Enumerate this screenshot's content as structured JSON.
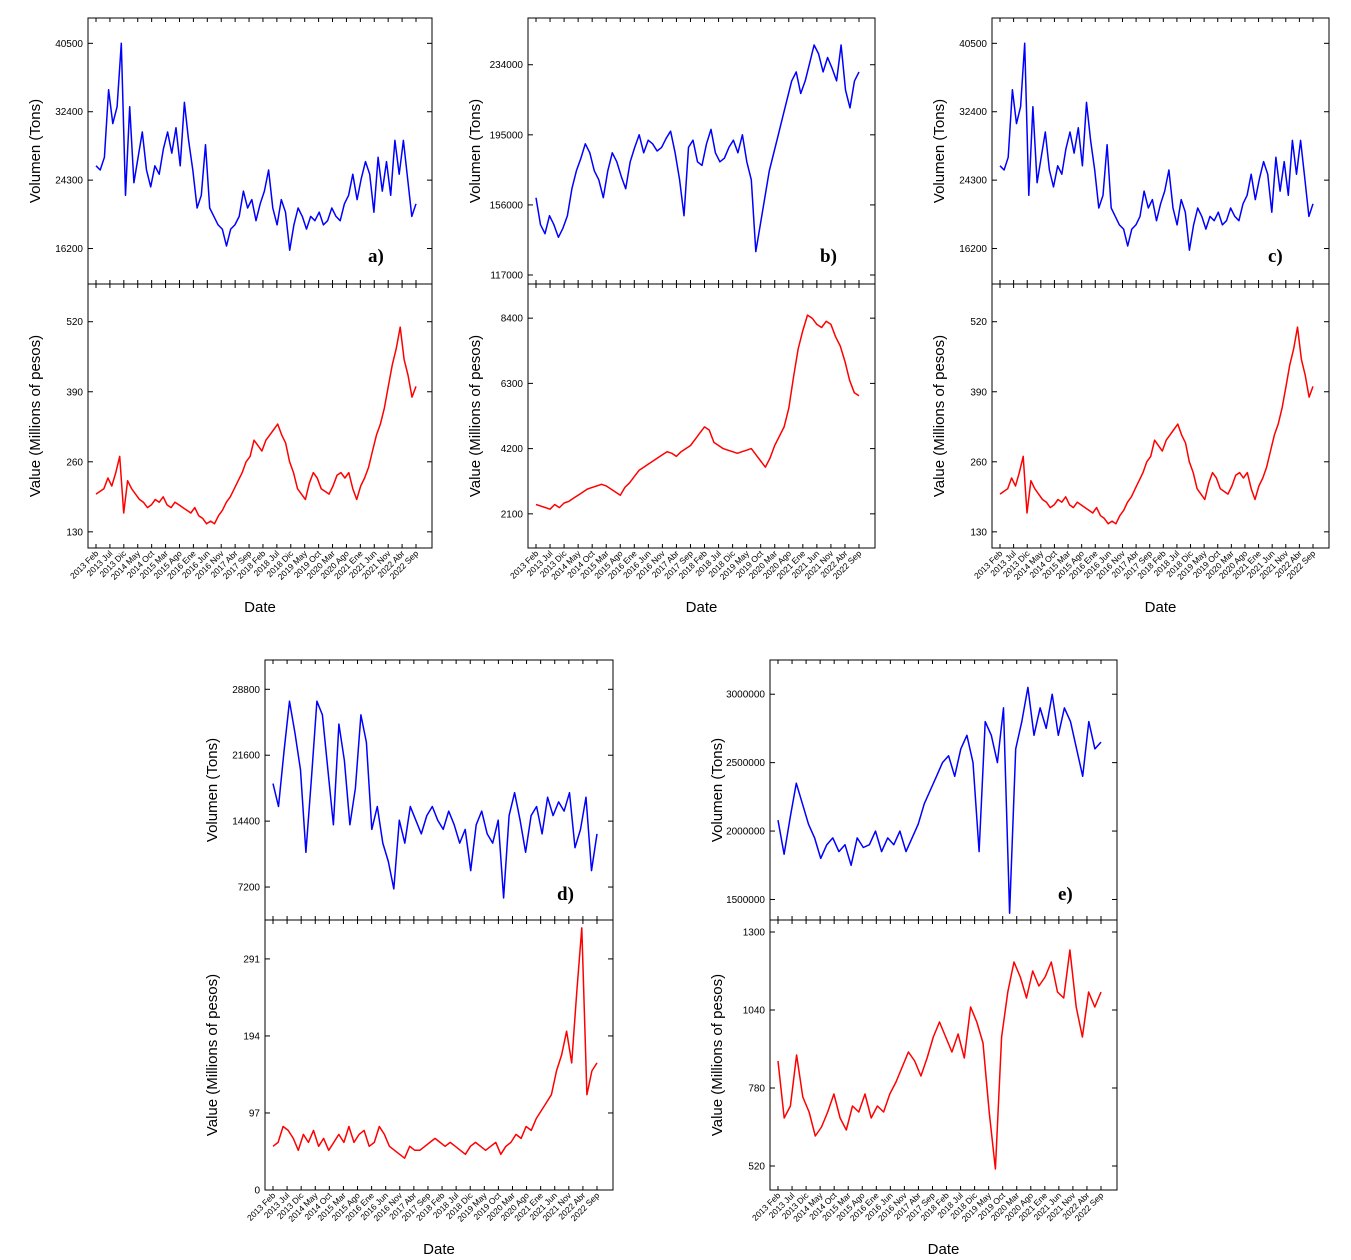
{
  "colors": {
    "volume_series": "#0000ff",
    "value_series": "#ff0000"
  },
  "shared_x_ticks": [
    "2013 Feb",
    "2013 Jul",
    "2013 Dic",
    "2014 May",
    "2014 Oct",
    "2015 Mar",
    "2015 Ago",
    "2016 Ene",
    "2016 Jun",
    "2016 Nov",
    "2017 Abr",
    "2017 Sep",
    "2018 Feb",
    "2018 Jul",
    "2018 Dic",
    "2019 May",
    "2019 Oct",
    "2020 Mar",
    "2020 Ago",
    "2021 Ene",
    "2021 Jun",
    "2021 Nov",
    "2022 Abr",
    "2022 Sep"
  ],
  "chart_data": [
    {
      "type": "line",
      "panel": "a)",
      "title": "",
      "xlabel": "Date",
      "volume": {
        "ylabel": "Volumen (Tons)",
        "yticks": [
          16200,
          24300,
          32400,
          40500
        ],
        "ylim": [
          12000,
          43500
        ],
        "series": [
          {
            "name": "Volumen",
            "values": [
              26000,
              25500,
              27000,
              35000,
              31000,
              33000,
              40500,
              22500,
              33000,
              24000,
              27000,
              30000,
              25500,
              23500,
              26000,
              25000,
              28000,
              30000,
              27500,
              30500,
              26000,
              33500,
              29000,
              25500,
              21000,
              22500,
              28500,
              21000,
              20000,
              19000,
              18500,
              16500,
              18500,
              19000,
              20000,
              23000,
              21000,
              22000,
              19500,
              21500,
              23000,
              25500,
              21000,
              19000,
              22000,
              20500,
              16000,
              19000,
              21000,
              20000,
              18500,
              20000,
              19500,
              20500,
              19000,
              19500,
              21000,
              20000,
              19500,
              21500,
              22500,
              25000,
              22000,
              24500,
              26500,
              25000,
              20500,
              27000,
              23000,
              26500,
              22500,
              29000,
              25000,
              29000,
              24500,
              20000,
              21500
            ]
          }
        ]
      },
      "value": {
        "ylabel": "Value (Millions of pesos)",
        "yticks": [
          130,
          260,
          390,
          520
        ],
        "ylim": [
          100,
          590
        ],
        "series": [
          {
            "name": "Value",
            "values": [
              200,
              205,
              210,
              230,
              215,
              240,
              270,
              165,
              225,
              210,
              200,
              190,
              185,
              175,
              180,
              190,
              185,
              195,
              180,
              175,
              185,
              180,
              175,
              170,
              165,
              175,
              160,
              155,
              145,
              150,
              145,
              160,
              170,
              185,
              195,
              210,
              225,
              240,
              260,
              270,
              300,
              290,
              280,
              300,
              310,
              320,
              330,
              310,
              295,
              260,
              240,
              210,
              200,
              190,
              220,
              240,
              230,
              210,
              205,
              200,
              215,
              235,
              240,
              230,
              240,
              210,
              190,
              215,
              230,
              250,
              280,
              310,
              330,
              360,
              400,
              440,
              470,
              510,
              450,
              420,
              380,
              400
            ]
          }
        ]
      }
    },
    {
      "type": "line",
      "panel": "b)",
      "title": "",
      "xlabel": "Date",
      "volume": {
        "ylabel": "Volumen (Tons)",
        "yticks": [
          117000,
          156000,
          195000,
          234000
        ],
        "ylim": [
          112000,
          260000
        ],
        "series": [
          {
            "name": "Volumen",
            "values": [
              160000,
              145000,
              140000,
              150000,
              145000,
              138000,
              143000,
              150000,
              165000,
              175000,
              182000,
              190000,
              185000,
              175000,
              170000,
              160000,
              175000,
              185000,
              180000,
              172000,
              165000,
              180000,
              188000,
              195000,
              185000,
              192000,
              190000,
              186000,
              188000,
              193000,
              197000,
              185000,
              170000,
              150000,
              188000,
              192000,
              180000,
              178000,
              190000,
              198000,
              185000,
              180000,
              182000,
              188000,
              192000,
              185000,
              195000,
              180000,
              170000,
              130000,
              145000,
              160000,
              175000,
              185000,
              195000,
              205000,
              215000,
              225000,
              230000,
              218000,
              225000,
              235000,
              245000,
              240000,
              230000,
              238000,
              232000,
              225000,
              245000,
              220000,
              210000,
              225000,
              230000
            ]
          }
        ]
      },
      "value": {
        "ylabel": "Value (Millions of pesos)",
        "yticks": [
          2100,
          4200,
          6300,
          8400
        ],
        "ylim": [
          1000,
          9500
        ],
        "series": [
          {
            "name": "Value",
            "values": [
              2400,
              2350,
              2300,
              2250,
              2400,
              2300,
              2450,
              2500,
              2600,
              2700,
              2800,
              2900,
              2950,
              3000,
              3050,
              3000,
              2900,
              2800,
              2700,
              2950,
              3100,
              3300,
              3500,
              3600,
              3700,
              3800,
              3900,
              4000,
              4100,
              4050,
              3950,
              4100,
              4200,
              4300,
              4500,
              4700,
              4900,
              4800,
              4400,
              4300,
              4200,
              4150,
              4100,
              4050,
              4100,
              4150,
              4200,
              4000,
              3800,
              3600,
              3900,
              4300,
              4600,
              4900,
              5500,
              6500,
              7400,
              8000,
              8500,
              8400,
              8200,
              8100,
              8300,
              8200,
              7800,
              7500,
              7000,
              6400,
              6000,
              5900
            ]
          }
        ]
      }
    },
    {
      "type": "line",
      "panel": "c)",
      "title": "",
      "xlabel": "Date",
      "volume": {
        "ylabel": "Volumen (Tons)",
        "yticks": [
          16200,
          24300,
          32400,
          40500
        ],
        "ylim": [
          12000,
          43500
        ],
        "series": [
          {
            "name": "Volumen",
            "values": [
              26000,
              25500,
              27000,
              35000,
              31000,
              33000,
              40500,
              22500,
              33000,
              24000,
              27000,
              30000,
              25500,
              23500,
              26000,
              25000,
              28000,
              30000,
              27500,
              30500,
              26000,
              33500,
              29000,
              25500,
              21000,
              22500,
              28500,
              21000,
              20000,
              19000,
              18500,
              16500,
              18500,
              19000,
              20000,
              23000,
              21000,
              22000,
              19500,
              21500,
              23000,
              25500,
              21000,
              19000,
              22000,
              20500,
              16000,
              19000,
              21000,
              20000,
              18500,
              20000,
              19500,
              20500,
              19000,
              19500,
              21000,
              20000,
              19500,
              21500,
              22500,
              25000,
              22000,
              24500,
              26500,
              25000,
              20500,
              27000,
              23000,
              26500,
              22500,
              29000,
              25000,
              29000,
              24500,
              20000,
              21500
            ]
          }
        ]
      },
      "value": {
        "ylabel": "Value (Millions of pesos)",
        "yticks": [
          130,
          260,
          390,
          520
        ],
        "ylim": [
          100,
          590
        ],
        "series": [
          {
            "name": "Value",
            "values": [
              200,
              205,
              210,
              230,
              215,
              240,
              270,
              165,
              225,
              210,
              200,
              190,
              185,
              175,
              180,
              190,
              185,
              195,
              180,
              175,
              185,
              180,
              175,
              170,
              165,
              175,
              160,
              155,
              145,
              150,
              145,
              160,
              170,
              185,
              195,
              210,
              225,
              240,
              260,
              270,
              300,
              290,
              280,
              300,
              310,
              320,
              330,
              310,
              295,
              260,
              240,
              210,
              200,
              190,
              220,
              240,
              230,
              210,
              205,
              200,
              215,
              235,
              240,
              230,
              240,
              210,
              190,
              215,
              230,
              250,
              280,
              310,
              330,
              360,
              400,
              440,
              470,
              510,
              450,
              420,
              380,
              400
            ]
          }
        ]
      }
    },
    {
      "type": "line",
      "panel": "d)",
      "title": "",
      "xlabel": "Date",
      "volume": {
        "ylabel": "Volumen (Tons)",
        "yticks": [
          7200,
          14400,
          21600,
          28800
        ],
        "ylim": [
          3600,
          32000
        ],
        "series": [
          {
            "name": "Volumen",
            "values": [
              18500,
              16000,
              22000,
              27500,
              24000,
              20000,
              11000,
              19000,
              27500,
              26000,
              20000,
              14000,
              25000,
              21000,
              14000,
              18000,
              26000,
              23000,
              13500,
              16000,
              12000,
              10000,
              7000,
              14500,
              12000,
              16000,
              14500,
              13000,
              15000,
              16000,
              14500,
              13500,
              15500,
              14000,
              12000,
              13500,
              9000,
              14000,
              15500,
              13000,
              12000,
              14500,
              6000,
              15000,
              17500,
              14500,
              11000,
              15000,
              16000,
              13000,
              17000,
              15000,
              16500,
              15500,
              17500,
              11500,
              13500,
              17000,
              9000,
              13000
            ]
          }
        ]
      },
      "value": {
        "ylabel": "Value (Millions of pesos)",
        "yticks": [
          0,
          97,
          194,
          291
        ],
        "ylim": [
          0,
          340
        ],
        "series": [
          {
            "name": "Value",
            "values": [
              55,
              60,
              80,
              75,
              65,
              50,
              70,
              60,
              75,
              55,
              65,
              50,
              60,
              70,
              60,
              80,
              60,
              70,
              75,
              55,
              60,
              80,
              70,
              55,
              50,
              45,
              40,
              55,
              50,
              50,
              55,
              60,
              65,
              60,
              55,
              60,
              55,
              50,
              45,
              55,
              60,
              55,
              50,
              55,
              60,
              45,
              55,
              60,
              70,
              65,
              80,
              75,
              90,
              100,
              110,
              120,
              150,
              170,
              200,
              160,
              250,
              330,
              120,
              150,
              160
            ]
          }
        ]
      }
    },
    {
      "type": "line",
      "panel": "e)",
      "title": "",
      "xlabel": "Date",
      "volume": {
        "ylabel": "Volumen (Tons)",
        "yticks": [
          1500000,
          2000000,
          2500000,
          3000000
        ],
        "ylim": [
          1350000,
          3250000
        ],
        "series": [
          {
            "name": "Volumen",
            "values": [
              2080000,
              1830000,
              2100000,
              2350000,
              2200000,
              2050000,
              1950000,
              1800000,
              1900000,
              1950000,
              1850000,
              1900000,
              1750000,
              1950000,
              1880000,
              1900000,
              2000000,
              1850000,
              1950000,
              1900000,
              2000000,
              1850000,
              1950000,
              2050000,
              2200000,
              2300000,
              2400000,
              2500000,
              2550000,
              2400000,
              2600000,
              2700000,
              2500000,
              1850000,
              2800000,
              2700000,
              2500000,
              2900000,
              1400000,
              2600000,
              2800000,
              3050000,
              2700000,
              2900000,
              2750000,
              3000000,
              2700000,
              2900000,
              2800000,
              2600000,
              2400000,
              2800000,
              2600000,
              2650000
            ]
          }
        ]
      },
      "value": {
        "ylabel": "Value (Millions of pesos)",
        "yticks": [
          520,
          780,
          1040,
          1300
        ],
        "ylim": [
          440,
          1340
        ],
        "series": [
          {
            "name": "Value",
            "values": [
              870,
              680,
              720,
              890,
              750,
              700,
              620,
              650,
              700,
              760,
              680,
              640,
              720,
              700,
              760,
              680,
              720,
              700,
              760,
              800,
              850,
              900,
              870,
              820,
              880,
              950,
              1000,
              950,
              900,
              960,
              880,
              1050,
              1000,
              930,
              700,
              510,
              950,
              1100,
              1200,
              1150,
              1080,
              1170,
              1120,
              1150,
              1200,
              1100,
              1080,
              1240,
              1050,
              950,
              1100,
              1050,
              1100
            ]
          }
        ]
      }
    }
  ]
}
